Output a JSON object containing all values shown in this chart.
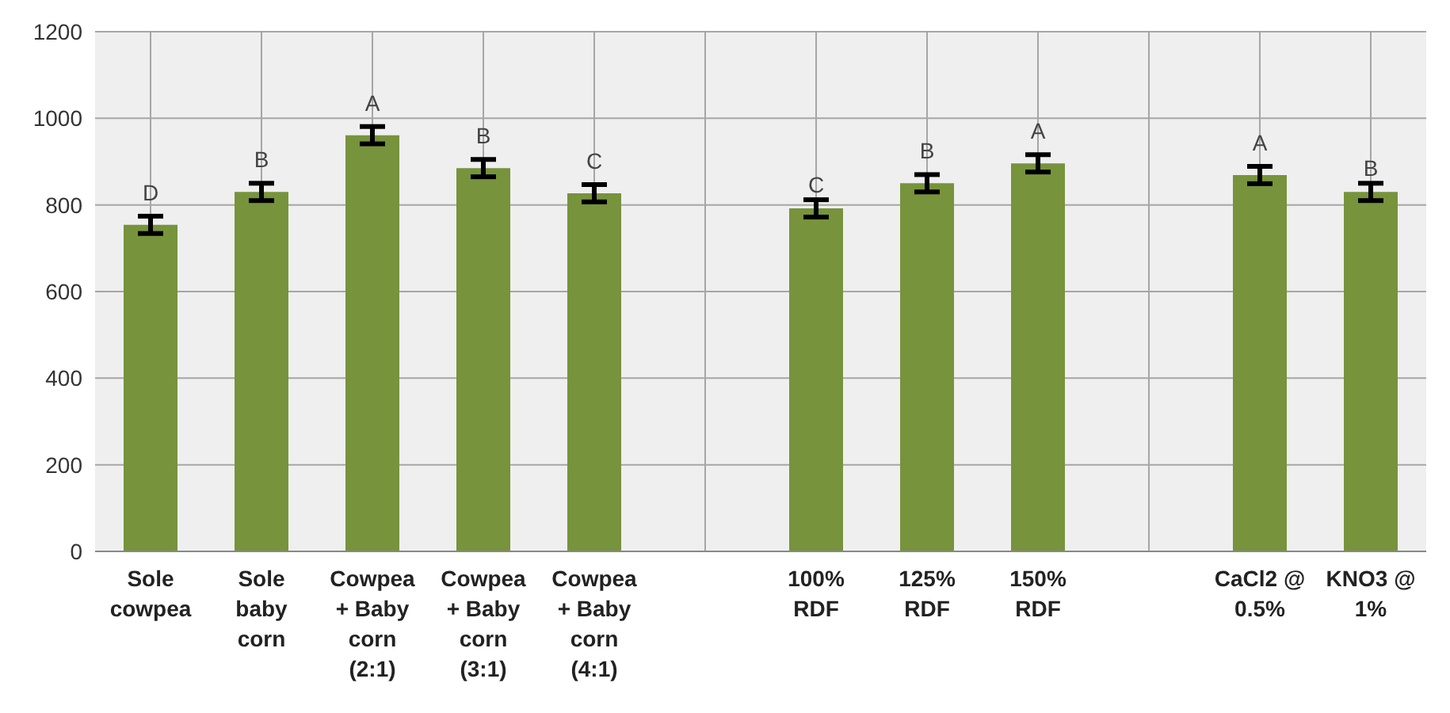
{
  "chart_data": {
    "type": "bar",
    "categories": [
      "Sole cowpea",
      "Sole baby corn",
      "Cowpea + Baby corn (2:1)",
      "Cowpea + Baby corn (3:1)",
      "Cowpea + Baby corn (4:1)",
      null,
      "100% RDF",
      "125% RDF",
      "150% RDF",
      null,
      "CaCl2 @ 0.5%",
      "KNO3 @ 1%"
    ],
    "values": [
      754,
      830,
      961,
      885,
      827,
      null,
      792,
      850,
      896,
      null,
      869,
      830
    ],
    "errors": [
      20,
      20,
      20,
      20,
      20,
      null,
      20,
      20,
      20,
      null,
      20,
      20
    ],
    "value_labels": [
      "D",
      "B",
      "A",
      "B",
      "C",
      null,
      "C",
      "B",
      "A",
      null,
      "A",
      "B"
    ],
    "color": "#77933c",
    "ylim": [
      0,
      1200
    ],
    "yticks": [
      0,
      200,
      400,
      600,
      800,
      1000,
      1200
    ],
    "grid": true
  }
}
